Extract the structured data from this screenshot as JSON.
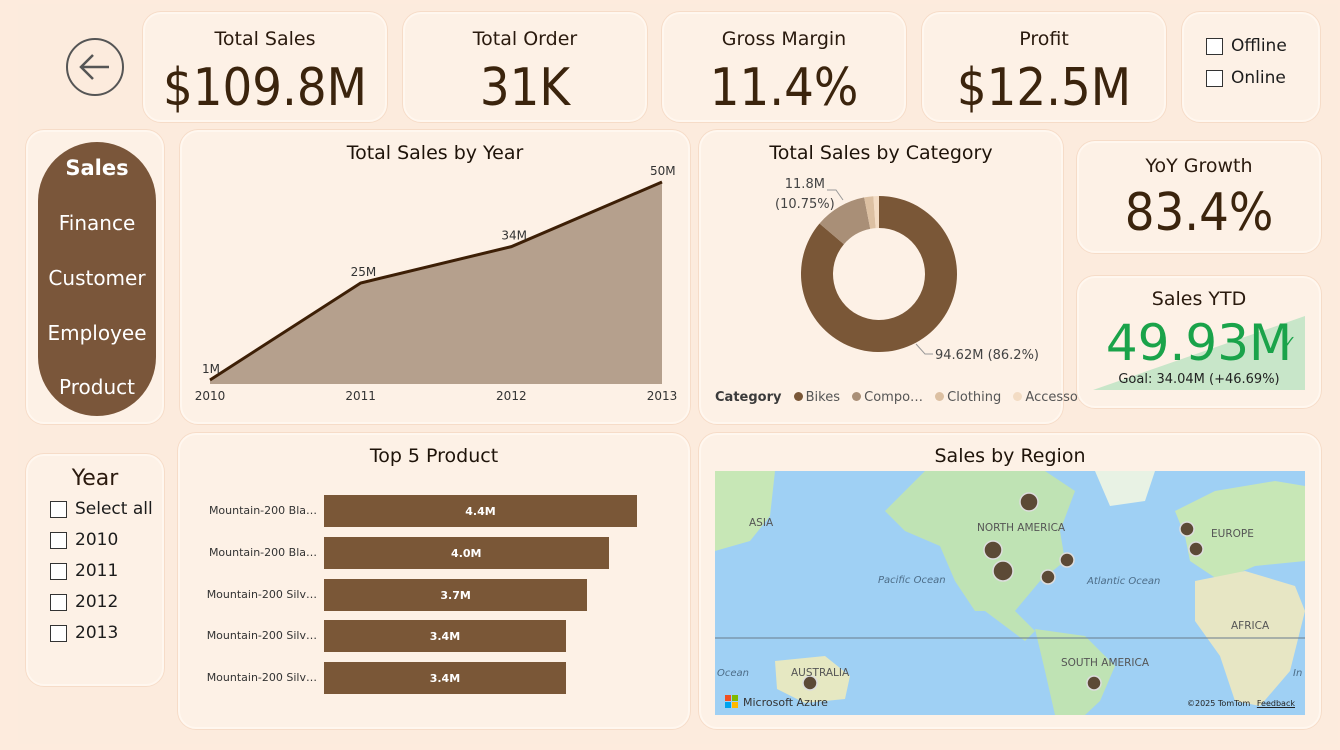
{
  "kpis": {
    "total_sales": {
      "title": "Total Sales",
      "value": "$109.8M"
    },
    "total_order": {
      "title": "Total Order",
      "value": "31K"
    },
    "gross_margin": {
      "title": "Gross Margin",
      "value": "11.4%"
    },
    "profit": {
      "title": "Profit",
      "value": "$12.5M"
    }
  },
  "channel_filter": {
    "offline": "Offline",
    "online": "Online"
  },
  "nav": {
    "items": [
      "Sales",
      "Finance",
      "Customer",
      "Employee",
      "Product"
    ],
    "active": "Sales"
  },
  "year_filter": {
    "title": "Year",
    "options": [
      "Select all",
      "2010",
      "2011",
      "2012",
      "2013"
    ]
  },
  "yoy": {
    "title": "YoY Growth",
    "value": "83.4%"
  },
  "sales_ytd": {
    "title": "Sales YTD",
    "value": "49.93M",
    "goal": "Goal: 34.04M (+46.69%)",
    "value_color": "#1aa34a",
    "check": "✓"
  },
  "colors": {
    "brown": "#7a5737",
    "area": "#b5a08d",
    "line": "#3d1f06"
  },
  "chart_data": [
    {
      "type": "area",
      "title": "Total Sales by Year",
      "x": [
        "2010",
        "2011",
        "2012",
        "2013"
      ],
      "values": [
        1,
        25,
        34,
        50
      ],
      "data_labels": [
        "1M",
        "25M",
        "34M",
        "50M"
      ],
      "xlabel": "",
      "ylabel": "",
      "ylim": [
        0,
        50
      ]
    },
    {
      "type": "pie",
      "title": "Total Sales by Category",
      "legend_title": "Category",
      "categories": [
        "Bikes",
        "Compo…",
        "Clothing",
        "Accesso…"
      ],
      "values": [
        86.2,
        10.75,
        1.9,
        1.15
      ],
      "colors": [
        "#7a5737",
        "#a98f77",
        "#dcc0a2",
        "#f3dcc4"
      ],
      "annotations": [
        {
          "text": "11.8M",
          "sub": "(10.75%)"
        },
        {
          "text": "94.62M (86.2%)"
        }
      ],
      "legend_position": "bottom"
    },
    {
      "type": "bar",
      "title": "Top 5 Product",
      "categories": [
        "Mountain-200 Bla…",
        "Mountain-200 Bla…",
        "Mountain-200 Silv…",
        "Mountain-200 Silv…",
        "Mountain-200 Silv…"
      ],
      "values": [
        4.4,
        4.0,
        3.7,
        3.4,
        3.4
      ],
      "data_labels": [
        "4.4M",
        "4.0M",
        "3.7M",
        "3.4M",
        "3.4M"
      ],
      "xlim": [
        0,
        4.4
      ]
    }
  ],
  "map": {
    "title": "Sales by Region",
    "labels": {
      "asia": "ASIA",
      "north_america": "NORTH AMERICA",
      "europe": "EUROPE",
      "pacific": "Pacific Ocean",
      "atlantic": "Atlantic Ocean",
      "africa": "AFRICA",
      "australia": "AUSTRALIA",
      "south_america": "SOUTH AMERICA",
      "ocean_left": "Ocean",
      "in": "In"
    },
    "attribution": "Microsoft Azure",
    "copyright": "©2025 TomTom",
    "feedback": "Feedback"
  }
}
